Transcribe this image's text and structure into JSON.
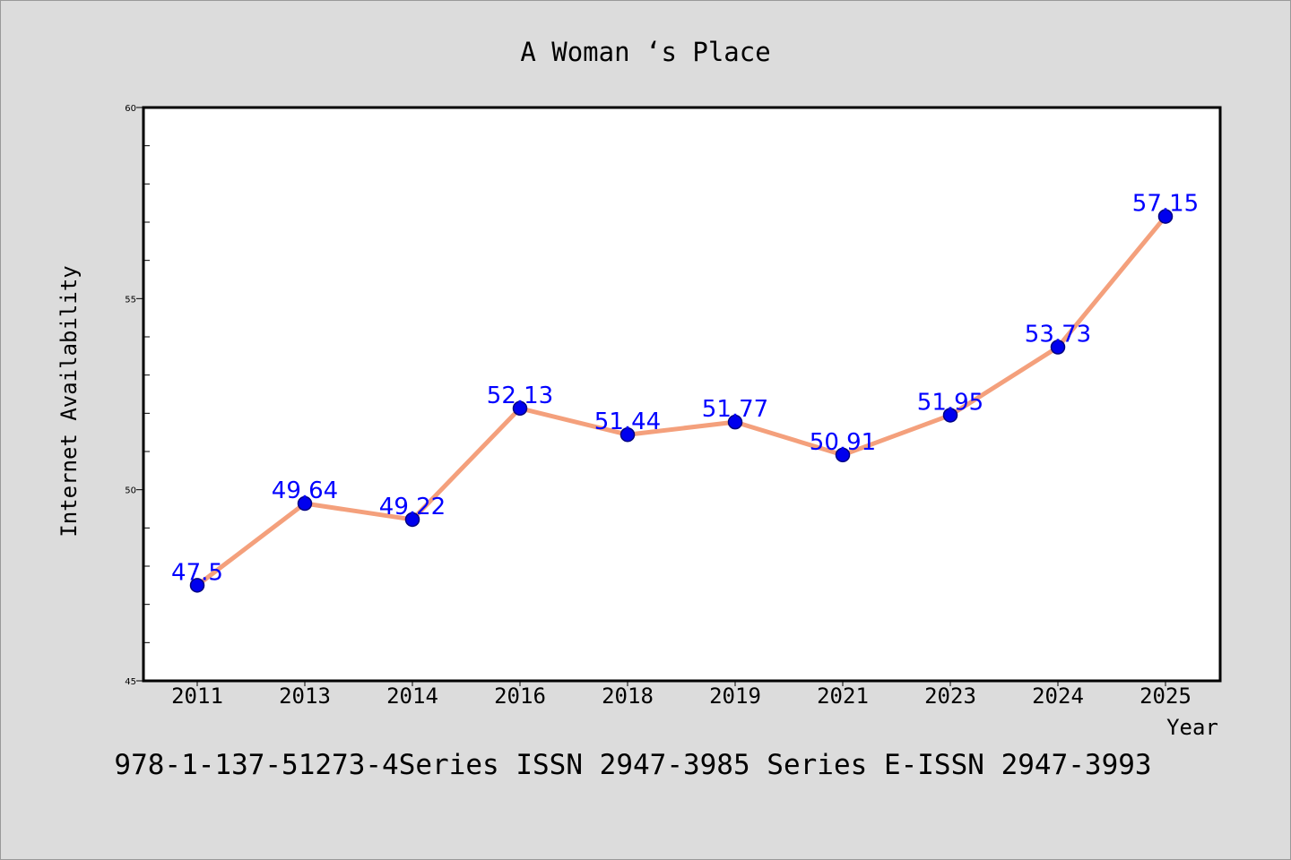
{
  "chart_data": {
    "type": "line",
    "title": "A Woman ‘s Place",
    "xlabel": "Year",
    "ylabel": "Internet Availability",
    "footer": "978-1-137-51273-4Series ISSN 2947-3985 Series E-ISSN 2947-3993",
    "categories": [
      "2011",
      "2013",
      "2014",
      "2016",
      "2018",
      "2019",
      "2021",
      "2023",
      "2024",
      "2025"
    ],
    "series": [
      {
        "values": [
          47.5,
          49.64,
          49.22,
          52.13,
          51.44,
          51.77,
          50.91,
          51.95,
          53.73,
          57.15
        ],
        "data_labels": [
          "47.5",
          "49.64",
          "49.22",
          "52.13",
          "51.44",
          "51.77",
          "50.91",
          "51.95",
          "53.73",
          "57.15"
        ]
      }
    ],
    "ylim": [
      45,
      60
    ],
    "yticks": [
      45,
      50,
      55,
      60
    ],
    "yminor_step": 1,
    "grid": false,
    "colors": {
      "line": "#f4a07c",
      "marker": "#0000ee",
      "marker_edge": "#000080",
      "data_label": "#0000ff",
      "background": "#dcdcdc",
      "plot_background": "#ffffff"
    }
  }
}
